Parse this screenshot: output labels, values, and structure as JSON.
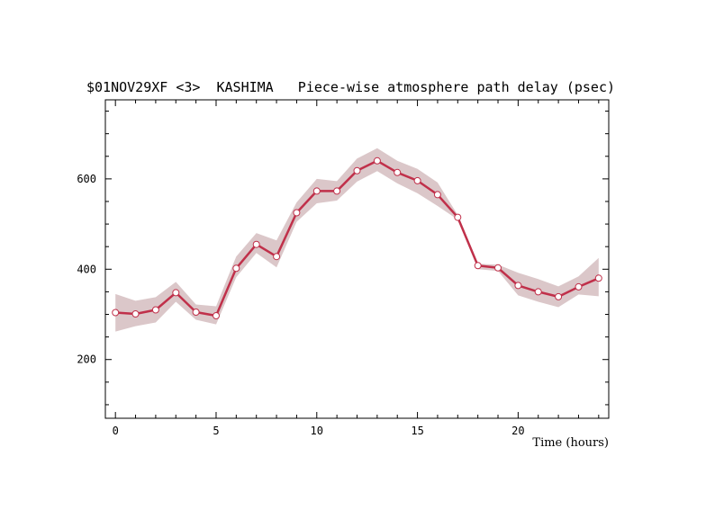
{
  "chart_data": {
    "type": "line",
    "title": "$01NOV29XF <3>  KASHIMA   Piece-wise atmosphere path delay (psec)",
    "xlabel": "Time (hours)",
    "ylabel": "",
    "xlim": [
      -0.5,
      24.5
    ],
    "ylim": [
      70,
      775
    ],
    "x_ticks": [
      0,
      5,
      10,
      15,
      20
    ],
    "y_ticks": [
      200,
      400,
      600
    ],
    "grid": false,
    "colors": {
      "line": "#c0304a",
      "band": "#dbc7c9",
      "marker_fill": "#ffffff"
    },
    "series": [
      {
        "x": [
          0,
          1,
          2,
          3,
          4,
          5,
          6,
          7,
          8,
          9,
          10,
          11,
          12,
          13,
          14,
          15,
          16,
          17,
          18,
          19,
          20,
          21,
          22,
          23,
          24
        ],
        "values": [
          304,
          301,
          310,
          348,
          305,
          297,
          402,
          455,
          428,
          525,
          573,
          573,
          618,
          640,
          614,
          596,
          565,
          515,
          408,
          403,
          364,
          350,
          339,
          361,
          380
        ],
        "band_upper": [
          345,
          330,
          338,
          372,
          322,
          318,
          428,
          480,
          464,
          548,
          600,
          595,
          645,
          668,
          640,
          622,
          592,
          520,
          412,
          410,
          392,
          378,
          362,
          384,
          425
        ],
        "band_lower": [
          262,
          274,
          282,
          328,
          288,
          278,
          382,
          436,
          404,
          505,
          546,
          552,
          594,
          617,
          590,
          568,
          540,
          510,
          400,
          396,
          342,
          328,
          316,
          344,
          340
        ]
      }
    ]
  }
}
